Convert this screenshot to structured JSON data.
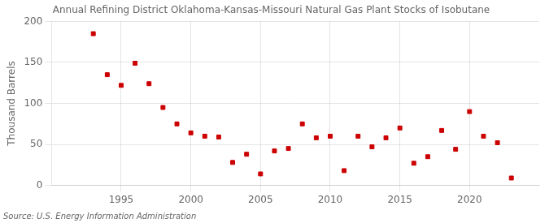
{
  "chart_data": {
    "type": "scatter",
    "title": "Annual Refining District Oklahoma-Kansas-Missouri Natural Gas Plant Stocks of Isobutane",
    "ylabel": "Thousand Barrels",
    "source": "Source: U.S. Energy Information Administration",
    "x": [
      1993,
      1994,
      1995,
      1996,
      1997,
      1998,
      1999,
      2000,
      2001,
      2002,
      2003,
      2004,
      2005,
      2006,
      2007,
      2008,
      2009,
      2010,
      2011,
      2012,
      2013,
      2014,
      2015,
      2016,
      2017,
      2018,
      2019,
      2020,
      2021,
      2022,
      2023
    ],
    "values": [
      185,
      135,
      122,
      149,
      124,
      95,
      75,
      64,
      60,
      59,
      28,
      38,
      14,
      42,
      45,
      75,
      58,
      60,
      18,
      60,
      47,
      58,
      70,
      27,
      35,
      67,
      44,
      90,
      60,
      52,
      9
    ],
    "color": "#cc0000",
    "marker": "square",
    "xlim": [
      1990,
      2025
    ],
    "xticks": [
      1995,
      2000,
      2005,
      2010,
      2015,
      2020
    ],
    "ylim": [
      0,
      200
    ],
    "yticks": [
      0,
      50,
      100,
      150,
      200
    ],
    "grid": true
  }
}
